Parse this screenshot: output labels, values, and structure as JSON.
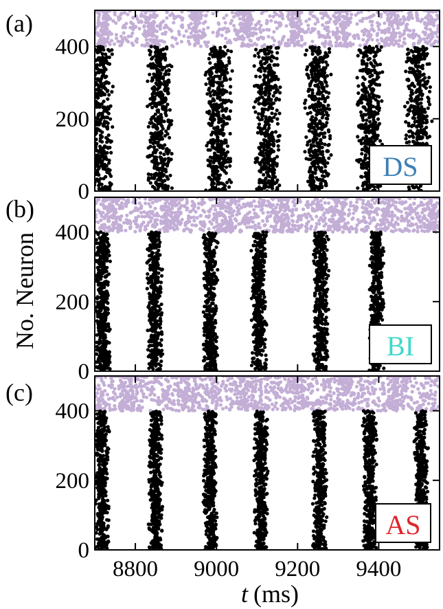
{
  "colors": {
    "excitatory": "#000000",
    "inhibitory": "#c3aed6",
    "DS": "#3d7fb5",
    "BI": "#3fd8c8",
    "AS": "#e0262b"
  },
  "xlabel_italic": "t",
  "xlabel_unit": "(ms)",
  "ylabel": "No. Neuron",
  "chart_data": [
    {
      "type": "scatter",
      "panel": "(a)",
      "tag": "DS",
      "xlim": [
        8700,
        9550
      ],
      "ylim": [
        0,
        500
      ],
      "xticks": [
        8800,
        9000,
        9200,
        9400
      ],
      "yticks": [
        0,
        200,
        400
      ],
      "ytick_labels": [
        "0",
        "200",
        "400"
      ],
      "series": [
        {
          "color": "#c3aed6",
          "y_range": [
            400,
            500
          ],
          "bands": [
            8720,
            8832,
            8952,
            9072,
            9192,
            9312,
            9432,
            9530
          ],
          "band_width": 22,
          "bg_density": 0.5
        },
        {
          "color": "#000000",
          "y_range": [
            0,
            400
          ],
          "bands": [
            8712,
            8860,
            9005,
            9125,
            9250,
            9378,
            9498
          ],
          "band_width": 38
        }
      ]
    },
    {
      "type": "scatter",
      "panel": "(b)",
      "tag": "BI",
      "xlim": [
        8700,
        9550
      ],
      "ylim": [
        0,
        500
      ],
      "xticks": [
        8800,
        9000,
        9200,
        9400
      ],
      "yticks": [
        0,
        200,
        400
      ],
      "ytick_labels": [
        "0",
        "200",
        "400"
      ],
      "series": [
        {
          "color": "#c3aed6",
          "y_range": [
            400,
            500
          ],
          "bands": [
            8745,
            8880,
            9025,
            9160,
            9300,
            9420,
            9530
          ],
          "band_width": 30,
          "bg_density": 0.7
        },
        {
          "color": "#000000",
          "y_range": [
            0,
            400
          ],
          "bands": [
            8720,
            8848,
            8985,
            9105,
            9258,
            9395
          ],
          "band_width": 22
        }
      ]
    },
    {
      "type": "scatter",
      "panel": "(c)",
      "tag": "AS",
      "xlim": [
        8700,
        9550
      ],
      "ylim": [
        0,
        500
      ],
      "xticks": [
        8800,
        9000,
        9200,
        9400
      ],
      "yticks": [
        0,
        200,
        400
      ],
      "ytick_labels": [
        "0",
        "200",
        "400"
      ],
      "xtick_labels": [
        "8800",
        "9000",
        "9200",
        "9400"
      ],
      "series": [
        {
          "color": "#c3aed6",
          "y_range": [
            400,
            500
          ],
          "bands": [
            8775,
            8930,
            9075,
            9200,
            9320,
            9450
          ],
          "band_width": 32,
          "bg_density": 0.7
        },
        {
          "color": "#000000",
          "y_range": [
            0,
            400
          ],
          "bands": [
            8718,
            8850,
            8985,
            9110,
            9255,
            9378,
            9505
          ],
          "band_width": 20
        }
      ]
    }
  ]
}
